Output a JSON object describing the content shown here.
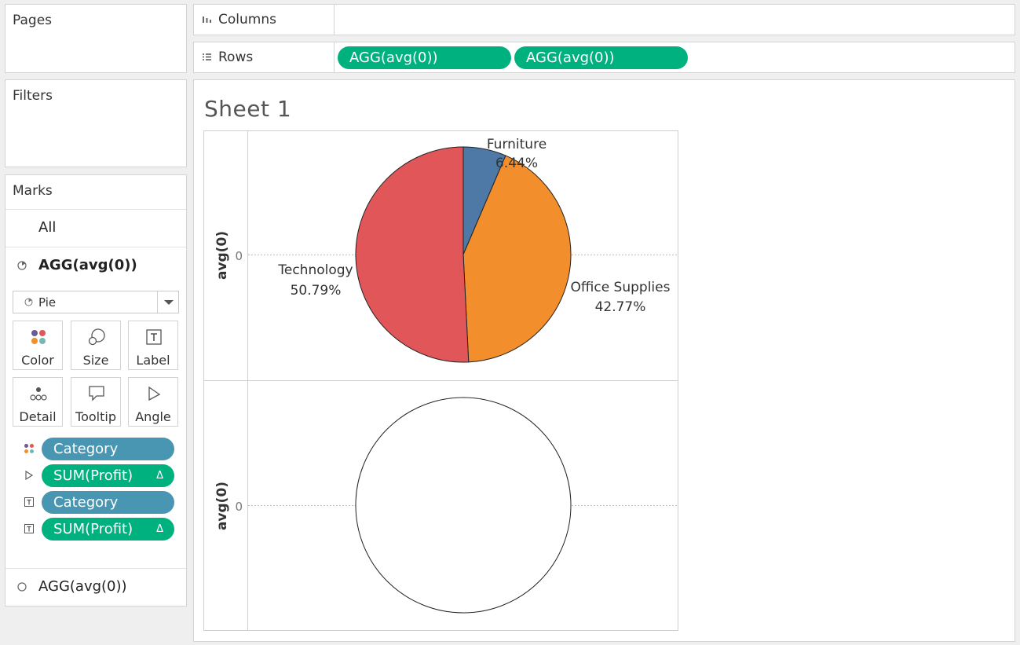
{
  "shelves": {
    "pages_label": "Pages",
    "filters_label": "Filters",
    "columns_label": "Columns",
    "rows_label": "Rows",
    "rows_pills": [
      "AGG(avg(0))",
      "AGG(avg(0))"
    ]
  },
  "marks": {
    "title": "Marks",
    "all_label": "All",
    "active_label": "AGG(avg(0))",
    "mark_type": "Pie",
    "cards": {
      "color": "Color",
      "size": "Size",
      "label": "Label",
      "detail": "Detail",
      "tooltip": "Tooltip",
      "angle": "Angle"
    },
    "fields": [
      {
        "label": "Category",
        "kind": "dimension",
        "role": "color",
        "icon": "color-dots-icon"
      },
      {
        "label": "SUM(Profit)",
        "kind": "measure",
        "role": "angle",
        "icon": "angle-icon",
        "delta": "Δ"
      },
      {
        "label": "Category",
        "kind": "dimension",
        "role": "label",
        "icon": "label-icon"
      },
      {
        "label": "SUM(Profit)",
        "kind": "measure",
        "role": "label",
        "icon": "label-icon",
        "delta": "Δ"
      }
    ],
    "second_label": "AGG(avg(0))"
  },
  "sheet": {
    "title": "Sheet 1"
  },
  "colors": {
    "dimension_pill": "#4996b2",
    "measure_pill": "#00b180",
    "furniture": "#4e79a7",
    "office_supplies": "#f28e2b",
    "technology": "#e15759"
  },
  "chart_data": [
    {
      "type": "pie",
      "axis_label": "avg(0)",
      "axis_tick": "0",
      "slices": [
        {
          "name": "Furniture",
          "value": 6.44,
          "label": "6.44%",
          "color": "#4e79a7"
        },
        {
          "name": "Office Supplies",
          "value": 42.77,
          "label": "42.77%",
          "color": "#f28e2b"
        },
        {
          "name": "Technology",
          "value": 50.79,
          "label": "50.79%",
          "color": "#e15759"
        }
      ]
    },
    {
      "type": "pie",
      "axis_label": "avg(0)",
      "axis_tick": "0",
      "slices": []
    }
  ]
}
